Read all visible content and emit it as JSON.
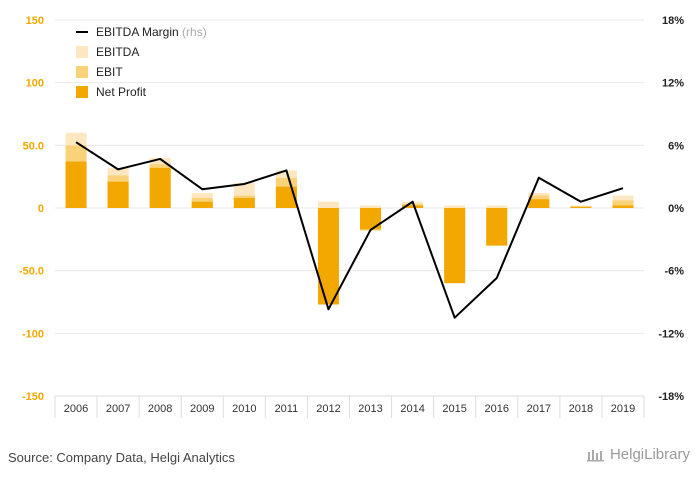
{
  "chart_data": {
    "type": "bar",
    "categories": [
      "2006",
      "2007",
      "2008",
      "2009",
      "2010",
      "2011",
      "2012",
      "2013",
      "2014",
      "2015",
      "2016",
      "2017",
      "2018",
      "2019"
    ],
    "series": [
      {
        "name": "EBITDA",
        "kind": "bar",
        "color": "#fde7c0",
        "values": [
          60,
          32,
          40,
          12,
          20,
          30,
          5,
          2,
          5,
          2,
          2,
          12,
          2,
          10
        ]
      },
      {
        "name": "EBIT",
        "kind": "bar",
        "color": "#f9d27a",
        "values": [
          50,
          26,
          35,
          8,
          10,
          24,
          -65,
          -18,
          3,
          -55,
          -30,
          10,
          1,
          6
        ]
      },
      {
        "name": "Net Profit",
        "kind": "bar",
        "color": "#f2a800",
        "values": [
          37,
          21,
          32,
          5,
          8,
          17,
          -77,
          -17,
          2,
          -60,
          -30,
          7,
          1,
          2
        ]
      },
      {
        "name": "EBITDA Margin",
        "legend_suffix": "(rhs)",
        "kind": "line",
        "axis": "right",
        "color": "#000000",
        "values": [
          6.3,
          3.7,
          4.7,
          1.8,
          2.3,
          3.6,
          -9.7,
          -2.1,
          0.6,
          -10.5,
          -6.7,
          2.9,
          0.6,
          1.9
        ]
      }
    ],
    "ylim_left": [
      -150,
      150
    ],
    "yticks_left": [
      "150",
      "100",
      "50.0",
      "0",
      "-50.0",
      "-100",
      "-150"
    ],
    "ylim_right": [
      -18,
      18
    ],
    "yticks_right": [
      "18%",
      "12%",
      "6%",
      "0%",
      "-6%",
      "-12%",
      "-18%"
    ],
    "grid": true,
    "legend_position": "top-left"
  },
  "footer": {
    "source": "Source: Company Data, Helgi Analytics",
    "logo_text": "HelgiLibrary"
  },
  "colors": {
    "accent": "#f2a800",
    "grid": "#e8e8e8"
  }
}
